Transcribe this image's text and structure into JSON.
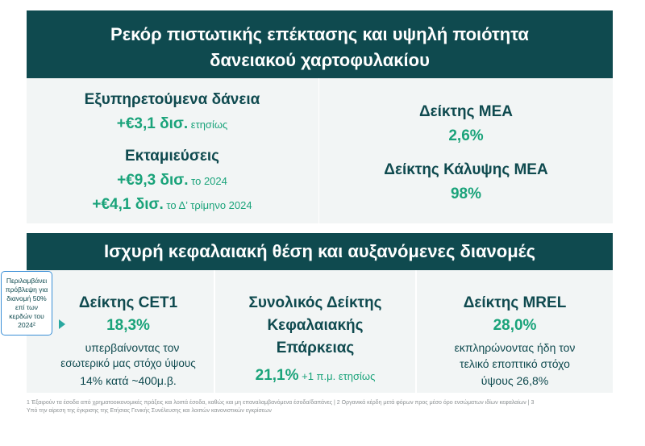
{
  "banner1": {
    "line1": "Ρεκόρ πιστωτικής επέκτασης και υψηλή ποιότητα",
    "line2": "δανειακού χαρτοφυλακίου"
  },
  "panel1": {
    "performing_title": "Εξυπηρετούμενα δάνεια",
    "performing_value": "+€3,1 δισ.",
    "performing_suffix": " ετησίως",
    "disb_title": "Εκταμιεύσεις",
    "disb_value1": "+€9,3 δισ.",
    "disb_suffix1": " το 2024",
    "disb_value2": "+€4,1 δισ.",
    "disb_suffix2": " το Δ’ τρίμηνο 2024",
    "npe_title": "Δείκτης ΜΕΑ",
    "npe_value": "2,6%",
    "coverage_title": "Δείκτης Κάλυψης ΜΕΑ",
    "coverage_value": "98%"
  },
  "banner2": {
    "text": "Ισχυρή κεφαλαιακή θέση και αυξανόμενες διανομές"
  },
  "callout": [
    "Περιλαμβάνει",
    "πρόβλεψη για",
    "διανομή 50%",
    "επί των",
    "κερδών του",
    "2024²"
  ],
  "col1": {
    "title": "Δείκτης CET1",
    "value": "18,3%",
    "desc1": "υπερβαίνοντας τον",
    "desc2": "εσωτερικό μας στόχο ύψους",
    "desc3": "14% κατά ~400μ.β."
  },
  "col2": {
    "title1": "Συνολικός Δείκτης",
    "title2": "Κεφαλαιακής",
    "title3": "Επάρκειας",
    "value": "21,1%",
    "suffix": " +1 π.μ. ετησίως"
  },
  "col3": {
    "title": "Δείκτης MREL",
    "value": "28,0%",
    "desc1": "εκπληρώνοντας ήδη τον",
    "desc2": "τελικό εποπτικό στόχο",
    "desc3": "ύψους 26,8%"
  },
  "footnote": {
    "line1": "1 Έξαιρούν τα έσοδα από χρηματοοικονομικές πράξεις και λοιπά έσοδα, καθώς και μη επαναλαμβανόμενα έσοδα/δαπάνες | 2 Οργανικά κέρδη μετά φόρων προς μέσο όρο ενσώματων ιδίων κεφαλαίων | 3",
    "line2": "Υπό την αίρεση της έγκρισης της Ετήσιας Γενικής Συνέλευσης και λοιπών κανονιστικών εγκρίσεων"
  },
  "colors": {
    "banner": "#0f4a4f",
    "accent": "#1aa37a",
    "panel": "#f2f5f5"
  }
}
